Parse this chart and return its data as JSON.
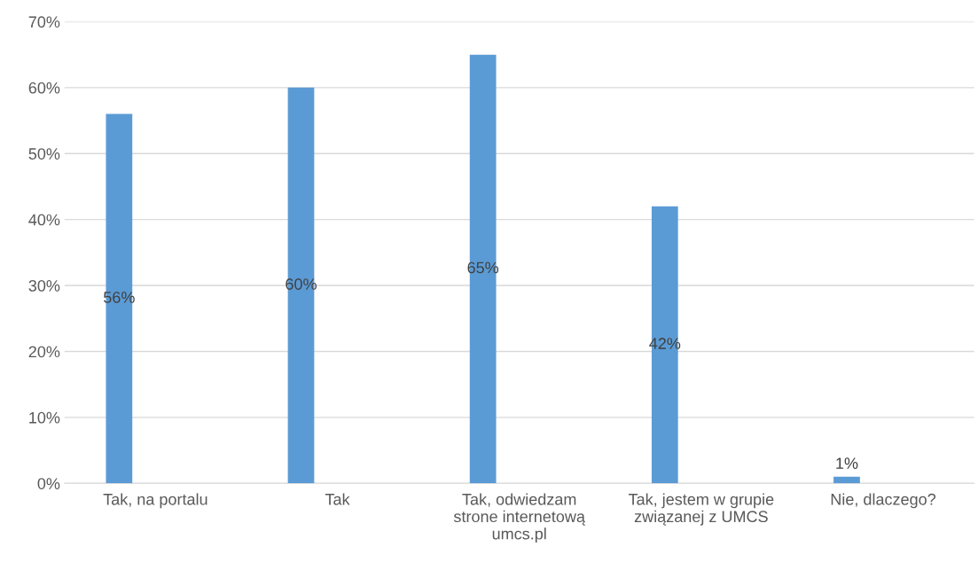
{
  "chart_data": {
    "type": "bar",
    "categories": [
      "Tak, na portalu",
      "Tak",
      "Tak, odwiedzam\nstrone internetową\numcs.pl",
      "Tak, jestem w grupie\nzwiązanej z UMCS",
      "Nie, dlaczego?"
    ],
    "values": [
      56,
      60,
      65,
      42,
      1
    ],
    "value_labels": [
      "56%",
      "60%",
      "65%",
      "42%",
      "1%"
    ],
    "color": "#5b9bd5",
    "ylim": [
      0,
      70
    ],
    "yticks": [
      {
        "value": 0,
        "label": "0%"
      },
      {
        "value": 10,
        "label": "10%"
      },
      {
        "value": 20,
        "label": "20%"
      },
      {
        "value": 30,
        "label": "30%"
      },
      {
        "value": 40,
        "label": "40%"
      },
      {
        "value": 50,
        "label": "50%"
      },
      {
        "value": 60,
        "label": "60%"
      },
      {
        "value": 70,
        "label": "70%"
      }
    ],
    "grid": "y"
  }
}
